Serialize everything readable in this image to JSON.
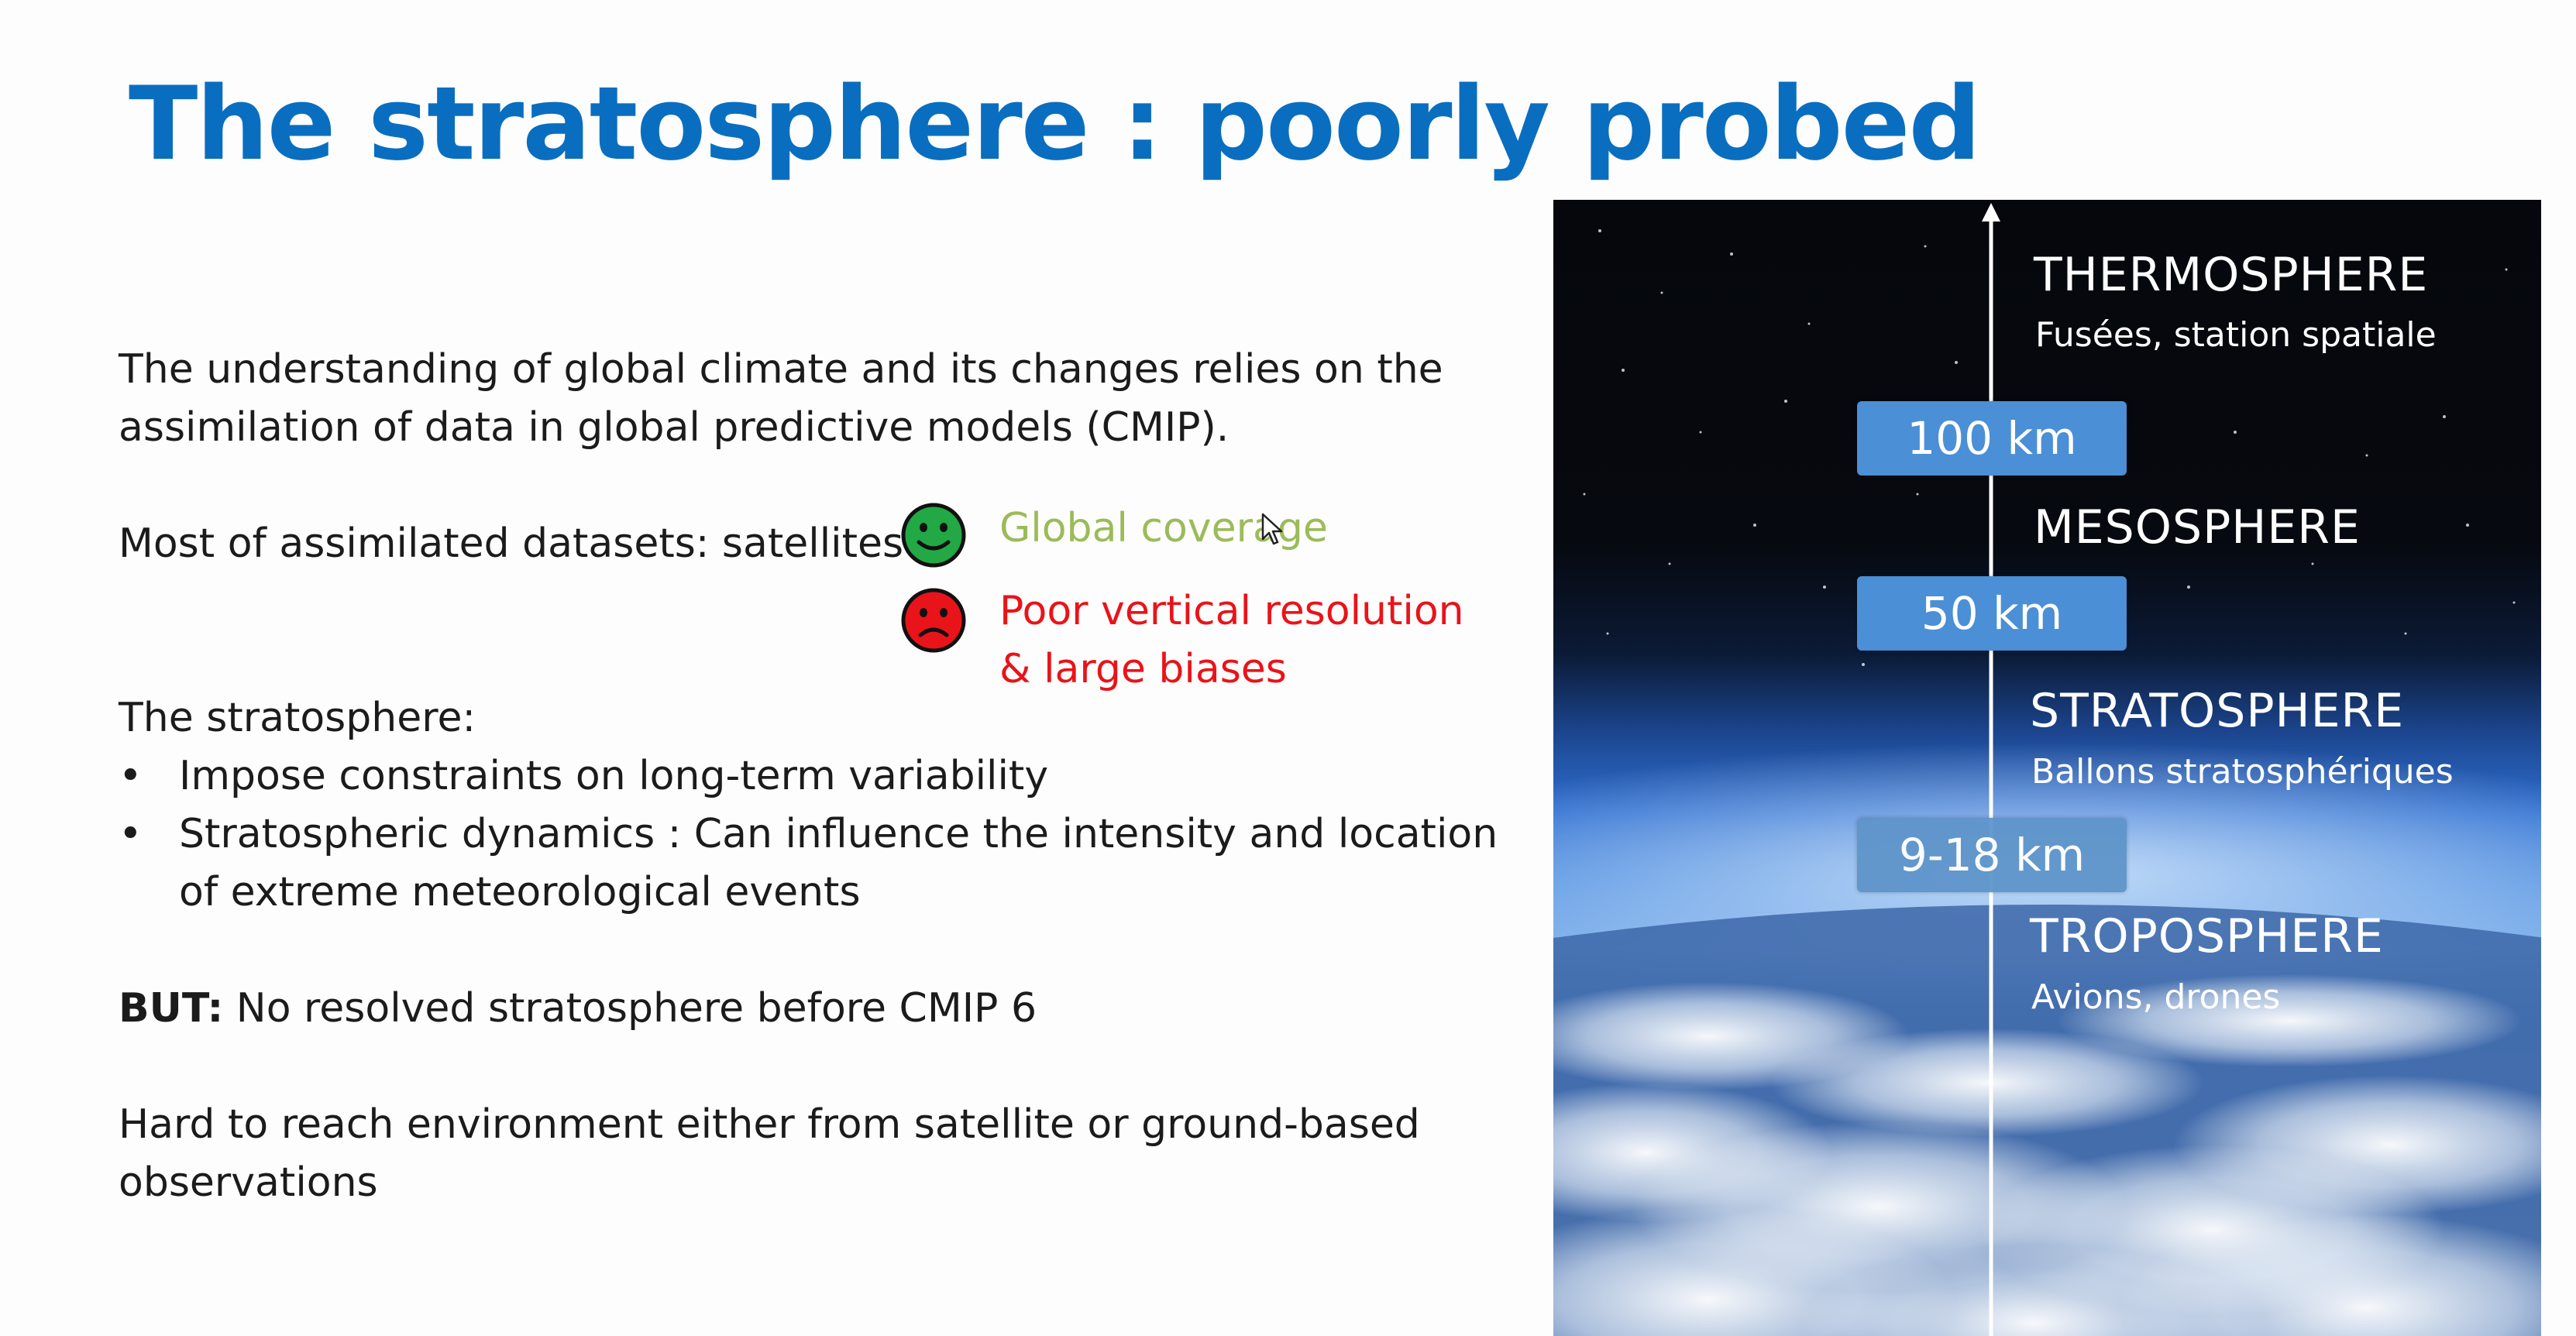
{
  "title": "The stratosphere : poorly probed",
  "intro": {
    "line1": "The understanding of global climate and its changes relies on the",
    "line2": "assimilation of data in global predictive models (CMIP)."
  },
  "datasets": {
    "label": "Most of assimilated datasets: satellites",
    "good_note": "Global coverage",
    "bad_note_line1": "Poor vertical resolution",
    "bad_note_line2": "& large biases",
    "good_color": "#9bbb59",
    "bad_color": "#e8141a",
    "good_face_icon": "smiley-face-icon",
    "bad_face_icon": "sad-face-icon"
  },
  "stratosphere": {
    "heading": "The stratosphere:",
    "bullet_char": "•",
    "bullets": [
      {
        "line1": "Impose constraints on long-term variability",
        "line2": ""
      },
      {
        "line1": "Stratospheric dynamics : Can influence the intensity and location",
        "line2": "of extreme meteorological events"
      }
    ]
  },
  "but": {
    "label": "BUT:",
    "text": " No resolved stratosphere before CMIP 6"
  },
  "hard": {
    "line1": "Hard to reach environment either from satellite or ground-based",
    "line2": "observations"
  },
  "atmosphere_figure": {
    "layers": [
      {
        "name": "THERMOSPHERE",
        "sub": "Fusées,  station spatiale"
      },
      {
        "name": "MESOSPHERE",
        "sub": ""
      },
      {
        "name": "STRATOSPHERE",
        "sub": "Ballons stratosphériques"
      },
      {
        "name": "TROPOSPHERE",
        "sub": "Avions, drones"
      }
    ],
    "altitudes": [
      "100 km",
      "50 km",
      "9-18 km"
    ]
  },
  "colors": {
    "title": "#0a6ec0",
    "badge": "#4b8fd6"
  }
}
